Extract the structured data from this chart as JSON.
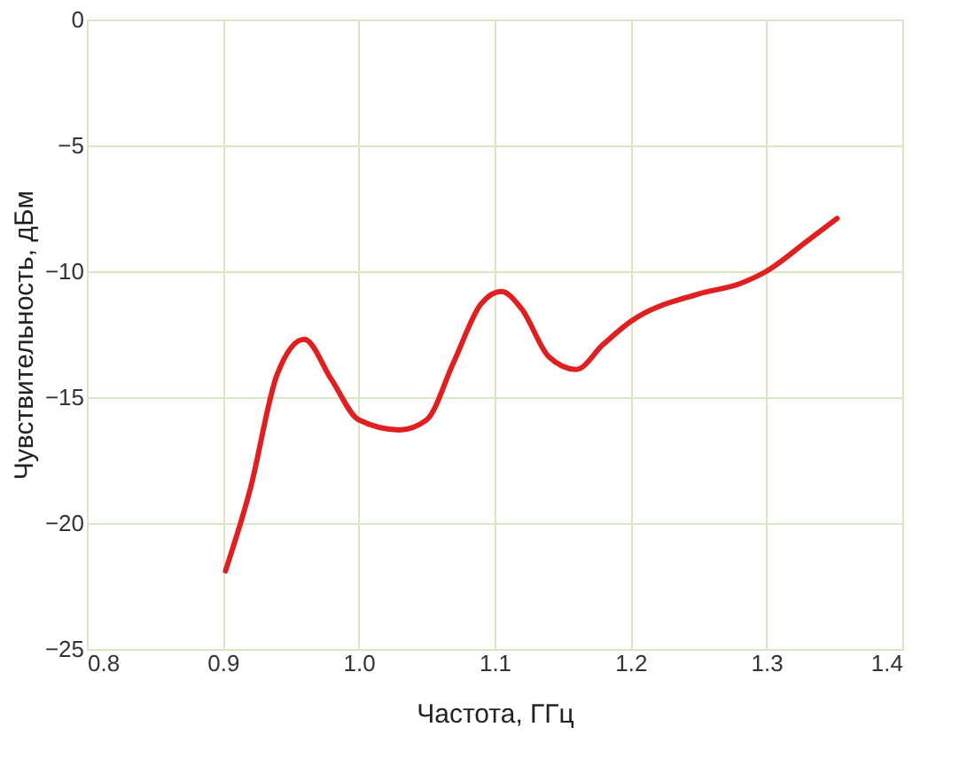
{
  "chart_data": {
    "type": "line",
    "xlabel": "Частота, ГГц",
    "ylabel": "Чувствительность, дБм",
    "xlim": [
      0.8,
      1.4
    ],
    "xticks": [
      0.8,
      0.9,
      {
        "value": 1.0,
        "label": "1.0"
      },
      1.1,
      1.2,
      1.3,
      1.4
    ],
    "ylim": [
      -25,
      0
    ],
    "yticks": [
      -25,
      -20,
      -15,
      -10,
      -5,
      0
    ],
    "grid": true,
    "marker": "none",
    "line_style": "solid",
    "series": [
      {
        "color": "#e02020",
        "x": [
          0.902,
          0.92,
          0.94,
          0.96,
          0.98,
          1.0,
          1.03,
          1.05,
          1.07,
          1.09,
          1.105,
          1.12,
          1.14,
          1.16,
          1.18,
          1.2,
          1.25,
          1.28,
          1.3,
          1.33,
          1.352
        ],
        "values": [
          -21.9,
          -18.7,
          -14.1,
          -12.7,
          -14.3,
          -15.9,
          -16.3,
          -15.9,
          -13.6,
          -11.3,
          -10.8,
          -11.5,
          -13.4,
          -13.9,
          -12.9,
          -12.0,
          -10.9,
          -10.5,
          -10.0,
          -8.8,
          -7.9
        ]
      }
    ]
  }
}
